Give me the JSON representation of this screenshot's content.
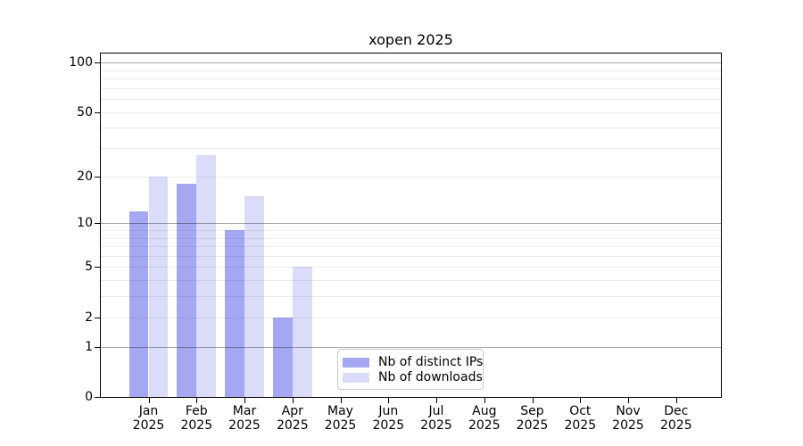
{
  "chart_data": {
    "type": "bar",
    "title": "xopen 2025",
    "categories": [
      "Jan",
      "Feb",
      "Mar",
      "Apr",
      "May",
      "Jun",
      "Jul",
      "Aug",
      "Sep",
      "Oct",
      "Nov",
      "Dec"
    ],
    "category_year_label": "2025",
    "series": [
      {
        "name": "Nb of distinct IPs",
        "color": "#a6a7f2",
        "values": [
          12,
          18,
          9,
          2,
          0,
          0,
          0,
          0,
          0,
          0,
          0,
          0
        ]
      },
      {
        "name": "Nb of downloads",
        "color": "#dbdcf9",
        "values": [
          20,
          27,
          15,
          5,
          0,
          0,
          0,
          0,
          0,
          0,
          0,
          0
        ]
      }
    ],
    "y_axis": {
      "scale": "log1p",
      "tick_values": [
        100,
        50,
        20,
        10,
        5,
        2,
        1,
        0
      ],
      "major_grid_values": [
        1,
        10,
        100
      ],
      "minor_grid_values": [
        2,
        3,
        4,
        5,
        6,
        7,
        8,
        9,
        20,
        30,
        40,
        50,
        60,
        70,
        80,
        90
      ],
      "ylim": [
        0,
        113
      ]
    },
    "grid": true,
    "legend_position": "lower center"
  },
  "colors": {
    "spine": "#000000",
    "grid_major": "rgba(0,0,0,0.35)",
    "grid_minor": "rgba(0,0,0,0.08)",
    "background": "#ffffff",
    "text": "#000000"
  }
}
